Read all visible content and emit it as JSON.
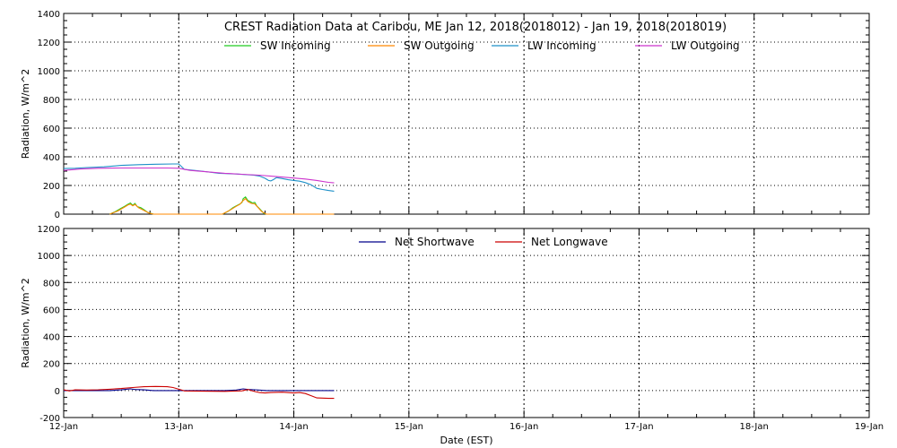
{
  "chart_data": [
    {
      "type": "line",
      "title": "CREST Radiation Data at Caribou, ME   Jan 12, 2018(2018012) - Jan 19, 2018(2018019)",
      "ylabel": "Radiation, W/m^2",
      "ylim": [
        0,
        1400
      ],
      "yticks": [
        0,
        200,
        400,
        600,
        800,
        1000,
        1200,
        1400
      ],
      "xlim": [
        "2018-01-12",
        "2018-01-19"
      ],
      "grid": true,
      "legend_position": "top",
      "series": [
        {
          "name": "SW Incoming",
          "color": "#22cc22",
          "points": [
            [
              0.4,
              0
            ],
            [
              0.45,
              18
            ],
            [
              0.5,
              42
            ],
            [
              0.53,
              55
            ],
            [
              0.56,
              70
            ],
            [
              0.58,
              78
            ],
            [
              0.6,
              62
            ],
            [
              0.62,
              75
            ],
            [
              0.64,
              52
            ],
            [
              0.67,
              45
            ],
            [
              0.7,
              30
            ],
            [
              0.73,
              12
            ],
            [
              0.76,
              5
            ],
            [
              0.78,
              0
            ],
            [
              1.38,
              0
            ],
            [
              1.43,
              20
            ],
            [
              1.47,
              45
            ],
            [
              1.5,
              58
            ],
            [
              1.53,
              70
            ],
            [
              1.55,
              82
            ],
            [
              1.56,
              108
            ],
            [
              1.58,
              120
            ],
            [
              1.6,
              95
            ],
            [
              1.62,
              88
            ],
            [
              1.64,
              78
            ],
            [
              1.66,
              82
            ],
            [
              1.68,
              55
            ],
            [
              1.7,
              40
            ],
            [
              1.72,
              22
            ],
            [
              1.74,
              5
            ],
            [
              1.76,
              0
            ]
          ]
        },
        {
          "name": "SW Outgoing",
          "color": "#ff8800",
          "points": [
            [
              0.4,
              0
            ],
            [
              0.47,
              22
            ],
            [
              0.53,
              50
            ],
            [
              0.56,
              65
            ],
            [
              0.58,
              70
            ],
            [
              0.6,
              58
            ],
            [
              0.62,
              68
            ],
            [
              0.65,
              45
            ],
            [
              0.7,
              25
            ],
            [
              0.74,
              8
            ],
            [
              0.78,
              0
            ],
            [
              1.38,
              0
            ],
            [
              1.45,
              30
            ],
            [
              1.5,
              55
            ],
            [
              1.53,
              68
            ],
            [
              1.56,
              95
            ],
            [
              1.58,
              108
            ],
            [
              1.6,
              88
            ],
            [
              1.63,
              75
            ],
            [
              1.66,
              72
            ],
            [
              1.69,
              45
            ],
            [
              1.72,
              18
            ],
            [
              1.76,
              0
            ],
            [
              2.35,
              0
            ]
          ]
        },
        {
          "name": "LW Incoming",
          "color": "#1e90c8",
          "points": [
            [
              0.0,
              318
            ],
            [
              0.1,
              320
            ],
            [
              0.2,
              325
            ],
            [
              0.35,
              330
            ],
            [
              0.5,
              340
            ],
            [
              0.65,
              345
            ],
            [
              0.8,
              348
            ],
            [
              0.95,
              350
            ],
            [
              1.0,
              350
            ],
            [
              1.05,
              312
            ],
            [
              1.2,
              300
            ],
            [
              1.35,
              285
            ],
            [
              1.5,
              280
            ],
            [
              1.65,
              272
            ],
            [
              1.7,
              266
            ],
            [
              1.75,
              250
            ],
            [
              1.78,
              235
            ],
            [
              1.8,
              232
            ],
            [
              1.82,
              240
            ],
            [
              1.85,
              255
            ],
            [
              1.9,
              248
            ],
            [
              1.95,
              240
            ],
            [
              2.0,
              235
            ],
            [
              2.05,
              230
            ],
            [
              2.1,
              220
            ],
            [
              2.15,
              205
            ],
            [
              2.2,
              180
            ],
            [
              2.25,
              172
            ],
            [
              2.3,
              165
            ],
            [
              2.35,
              160
            ]
          ]
        },
        {
          "name": "LW Outgoing",
          "color": "#cc33cc",
          "points": [
            [
              0.0,
              305
            ],
            [
              0.15,
              315
            ],
            [
              0.3,
              320
            ],
            [
              0.5,
              322
            ],
            [
              0.7,
              322
            ],
            [
              0.9,
              322
            ],
            [
              1.0,
              320
            ],
            [
              1.1,
              305
            ],
            [
              1.25,
              295
            ],
            [
              1.4,
              285
            ],
            [
              1.55,
              278
            ],
            [
              1.7,
              272
            ],
            [
              1.85,
              262
            ],
            [
              2.0,
              252
            ],
            [
              2.1,
              245
            ],
            [
              2.2,
              235
            ],
            [
              2.3,
              222
            ],
            [
              2.35,
              218
            ]
          ]
        }
      ],
      "legend": [
        "SW Incoming",
        "SW Outgoing",
        "LW Incoming",
        "LW Outgoing"
      ]
    },
    {
      "type": "line",
      "ylabel": "Radiation, W/m^2",
      "xlabel": "Date (EST)",
      "ylim": [
        -200,
        1200
      ],
      "yticks": [
        -200,
        0,
        200,
        400,
        600,
        800,
        1000,
        1200
      ],
      "xlim": [
        "2018-01-12",
        "2018-01-19"
      ],
      "xticks": [
        "12-Jan",
        "13-Jan",
        "14-Jan",
        "15-Jan",
        "16-Jan",
        "17-Jan",
        "18-Jan",
        "19-Jan"
      ],
      "grid": true,
      "legend_position": "top",
      "series": [
        {
          "name": "Net Shortwave",
          "color": "#00008b",
          "points": [
            [
              0.0,
              0
            ],
            [
              0.4,
              0
            ],
            [
              0.5,
              5
            ],
            [
              0.58,
              12
            ],
            [
              0.62,
              8
            ],
            [
              0.7,
              5
            ],
            [
              0.78,
              0
            ],
            [
              1.4,
              0
            ],
            [
              1.5,
              4
            ],
            [
              1.56,
              12
            ],
            [
              1.6,
              8
            ],
            [
              1.66,
              6
            ],
            [
              1.72,
              2
            ],
            [
              1.76,
              0
            ],
            [
              2.35,
              0
            ]
          ]
        },
        {
          "name": "Net Longwave",
          "color": "#cc0000",
          "points": [
            [
              0.0,
              5
            ],
            [
              0.05,
              -3
            ],
            [
              0.1,
              5
            ],
            [
              0.2,
              4
            ],
            [
              0.3,
              6
            ],
            [
              0.4,
              10
            ],
            [
              0.5,
              15
            ],
            [
              0.6,
              22
            ],
            [
              0.7,
              28
            ],
            [
              0.8,
              30
            ],
            [
              0.9,
              28
            ],
            [
              0.95,
              22
            ],
            [
              1.0,
              10
            ],
            [
              1.05,
              -3
            ],
            [
              1.2,
              -5
            ],
            [
              1.4,
              -6
            ],
            [
              1.55,
              -2
            ],
            [
              1.6,
              8
            ],
            [
              1.65,
              -5
            ],
            [
              1.7,
              -15
            ],
            [
              1.75,
              -18
            ],
            [
              1.8,
              -15
            ],
            [
              1.9,
              -12
            ],
            [
              2.0,
              -18
            ],
            [
              2.05,
              -15
            ],
            [
              2.1,
              -22
            ],
            [
              2.15,
              -38
            ],
            [
              2.2,
              -55
            ],
            [
              2.3,
              -58
            ],
            [
              2.35,
              -58
            ]
          ]
        }
      ],
      "legend": [
        "Net Shortwave",
        "Net Longwave"
      ]
    }
  ]
}
